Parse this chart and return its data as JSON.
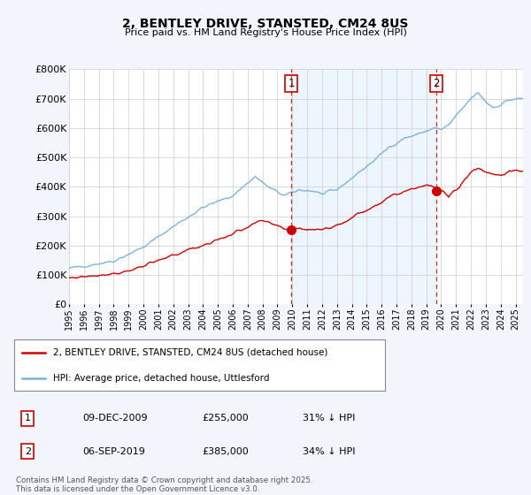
{
  "title": "2, BENTLEY DRIVE, STANSTED, CM24 8US",
  "subtitle": "Price paid vs. HM Land Registry's House Price Index (HPI)",
  "ylim": [
    0,
    800000
  ],
  "yticks": [
    0,
    100000,
    200000,
    300000,
    400000,
    500000,
    600000,
    700000,
    800000
  ],
  "ytick_labels": [
    "£0",
    "£100K",
    "£200K",
    "£300K",
    "£400K",
    "£500K",
    "£600K",
    "£700K",
    "£800K"
  ],
  "xlim_start": 1995.0,
  "xlim_end": 2025.5,
  "xtick_years": [
    1995,
    1996,
    1997,
    1998,
    1999,
    2000,
    2001,
    2002,
    2003,
    2004,
    2005,
    2006,
    2007,
    2008,
    2009,
    2010,
    2011,
    2012,
    2013,
    2014,
    2015,
    2016,
    2017,
    2018,
    2019,
    2020,
    2021,
    2022,
    2023,
    2024,
    2025
  ],
  "hpi_color": "#7ab3e0",
  "property_color": "#cc0000",
  "purchase1_x": 2009.92,
  "purchase1_y": 255000,
  "purchase2_x": 2019.67,
  "purchase2_y": 385000,
  "vline_color": "#cc0000",
  "shade_color": "#ddeeff",
  "shade_alpha": 0.5,
  "legend_property": "2, BENTLEY DRIVE, STANSTED, CM24 8US (detached house)",
  "legend_hpi": "HPI: Average price, detached house, Uttlesford",
  "table_row1": [
    "1",
    "09-DEC-2009",
    "£255,000",
    "31% ↓ HPI"
  ],
  "table_row2": [
    "2",
    "06-SEP-2019",
    "£385,000",
    "34% ↓ HPI"
  ],
  "footer": "Contains HM Land Registry data © Crown copyright and database right 2025.\nThis data is licensed under the Open Government Licence v3.0.",
  "bg_color": "#f2f5fb",
  "plot_bg_color": "#ffffff",
  "grid_color": "#cccccc"
}
